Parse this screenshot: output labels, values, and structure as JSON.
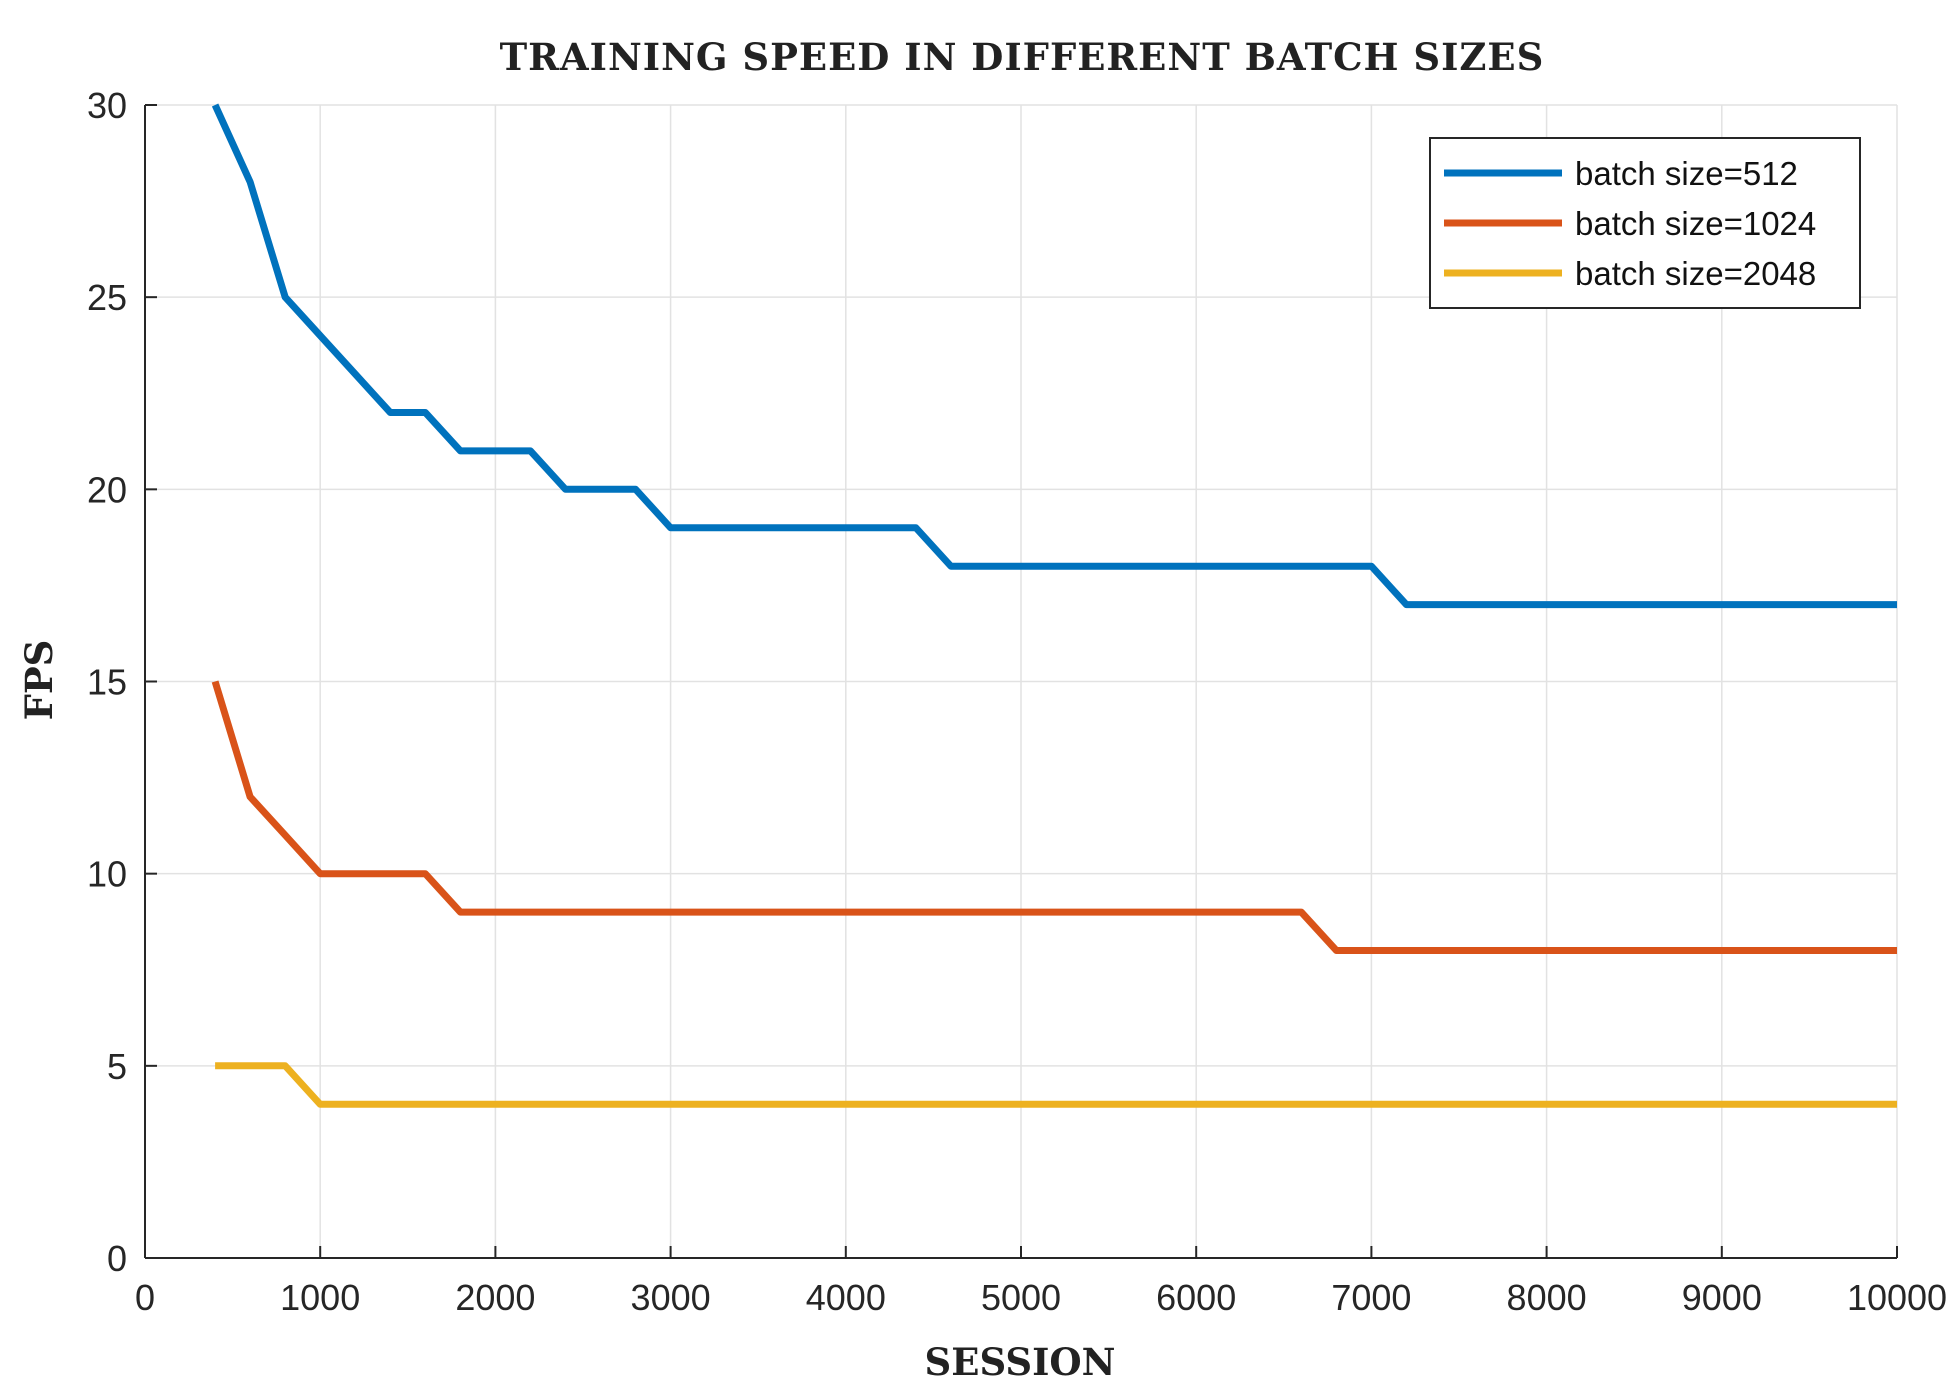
{
  "chart_data": {
    "type": "line",
    "title": "TRAINING SPEED IN DIFFERENT BATCH SIZES",
    "xlabel": "SESSION",
    "ylabel": "FPS",
    "xlim": [
      0,
      10000
    ],
    "ylim": [
      0,
      30
    ],
    "xticks": [
      0,
      1000,
      2000,
      3000,
      4000,
      5000,
      6000,
      7000,
      8000,
      9000,
      10000
    ],
    "xtick_labels": [
      "0",
      "1000",
      "2000",
      "3000",
      "4000",
      "5000",
      "6000",
      "7000",
      "8000",
      "9000",
      "10000"
    ],
    "yticks": [
      0,
      5,
      10,
      15,
      20,
      25,
      30
    ],
    "ytick_labels": [
      "0",
      "5",
      "10",
      "15",
      "20",
      "25",
      "30"
    ],
    "grid": true,
    "legend_position": "top-right",
    "series": [
      {
        "name": "batch size=512",
        "color": "#0072BD",
        "x": [
          400,
          600,
          800,
          1000,
          1200,
          1400,
          1600,
          1800,
          2000,
          2200,
          2400,
          2600,
          2800,
          3000,
          3200,
          4400,
          4600,
          7000,
          7200,
          10000
        ],
        "y": [
          30,
          28,
          25,
          24,
          23,
          22,
          22,
          21,
          21,
          21,
          20,
          20,
          20,
          19,
          19,
          19,
          18,
          18,
          17,
          17
        ]
      },
      {
        "name": "batch size=1024",
        "color": "#D95319",
        "x": [
          400,
          600,
          800,
          1000,
          1200,
          1400,
          1600,
          1800,
          6600,
          6800,
          10000
        ],
        "y": [
          15,
          12,
          11,
          10,
          10,
          10,
          10,
          9,
          9,
          8,
          8
        ]
      },
      {
        "name": "batch size=2048",
        "color": "#EDB120",
        "x": [
          400,
          600,
          800,
          1000,
          10000
        ],
        "y": [
          5,
          5,
          5,
          4,
          4
        ]
      }
    ]
  }
}
